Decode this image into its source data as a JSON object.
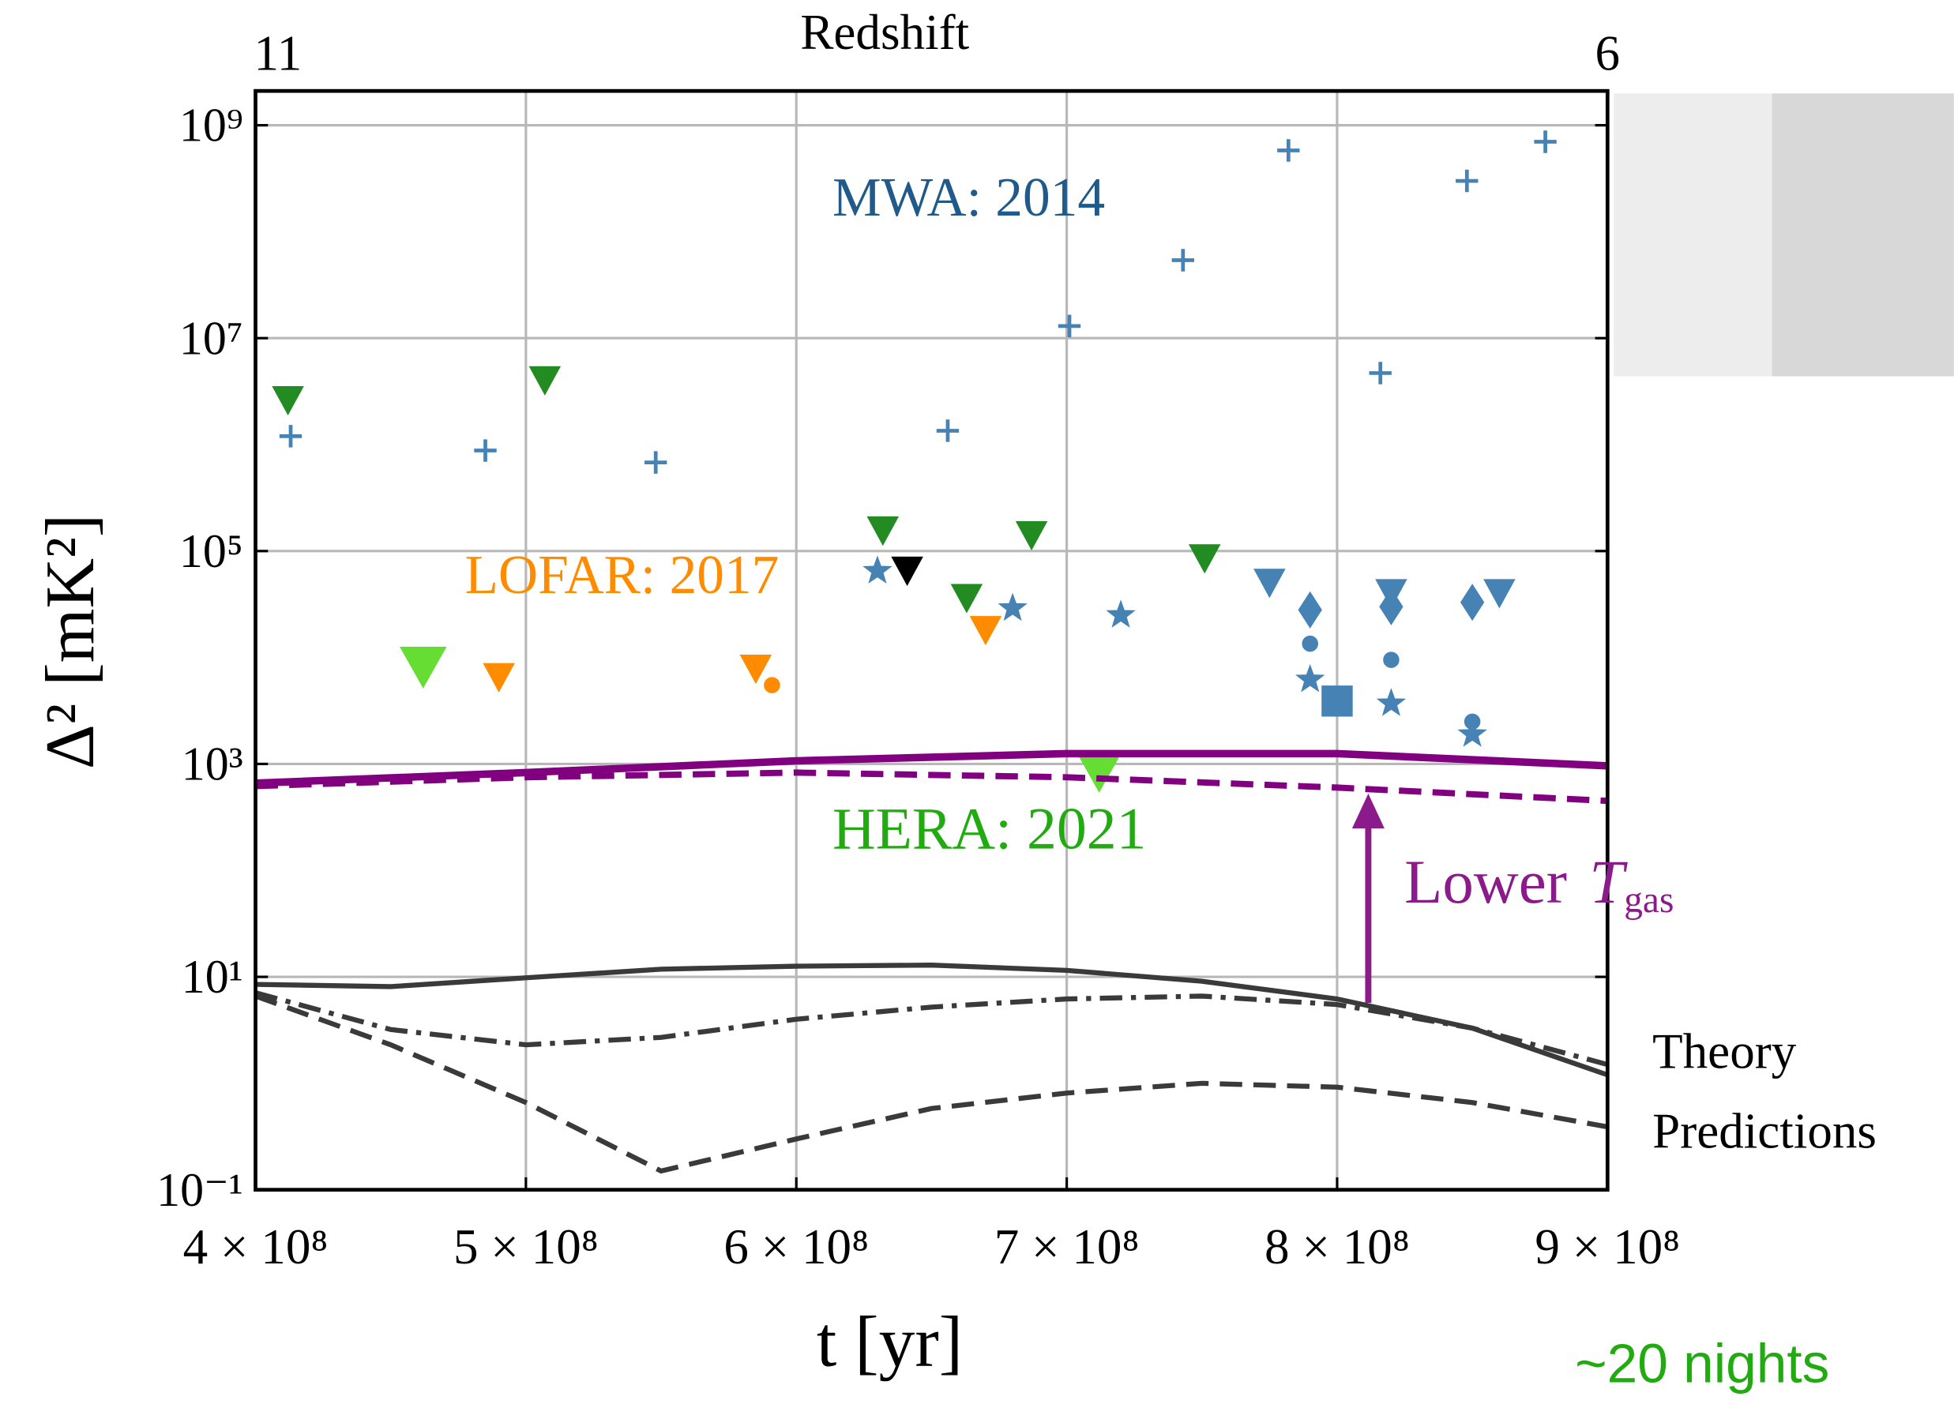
{
  "chart_data": {
    "type": "scatter",
    "x_label": "t [yr]",
    "y_label": "Δ² [mK²]",
    "top_axis_label": "Redshift",
    "xlim": [
      400000000,
      900000000
    ],
    "ylim": [
      0.1,
      2100000000
    ],
    "log_y": true,
    "grid": true,
    "xticks": [
      {
        "value": 400000000,
        "label": "4 × 10⁸"
      },
      {
        "value": 500000000,
        "label": "5 × 10⁸"
      },
      {
        "value": 600000000,
        "label": "6 × 10⁸"
      },
      {
        "value": 700000000,
        "label": "7 × 10⁸"
      },
      {
        "value": 800000000,
        "label": "8 × 10⁸"
      },
      {
        "value": 900000000,
        "label": "9 × 10⁸"
      }
    ],
    "x2ticks": [
      {
        "value": 400000000,
        "label": "11"
      },
      {
        "value": 900000000,
        "label": "6"
      }
    ],
    "yticks": [
      {
        "value": 0.1,
        "label": "10⁻¹"
      },
      {
        "value": 10,
        "label": "10¹"
      },
      {
        "value": 1000,
        "label": "10³"
      },
      {
        "value": 100000,
        "label": "10⁵"
      },
      {
        "value": 10000000,
        "label": "10⁷"
      },
      {
        "value": 1000000000,
        "label": "10⁹"
      }
    ],
    "annotations": [
      {
        "text": "MWA: 2014",
        "color": "#1f5a8a"
      },
      {
        "text": "LOFAR: 2017",
        "color": "#ff8c00"
      },
      {
        "text": "HERA: 2021",
        "color": "#22aa11"
      },
      {
        "text": "Lower",
        "symbol": "T",
        "subscript": "gas",
        "color": "#8b1a8b"
      },
      {
        "text": "Theory",
        "color": "#000000"
      },
      {
        "text": "Predictions",
        "color": "#000000"
      },
      {
        "text": "~20 nights",
        "color": "#22aa11"
      }
    ],
    "series": [
      {
        "kind": "marker",
        "marker": "plus",
        "color": "#4682b4",
        "x": [
          413000000,
          485000000,
          548000000,
          656000000,
          701000000,
          743000000,
          782000000,
          816000000,
          848000000,
          877000000
        ],
        "values": [
          1200000,
          880000,
          680000,
          1350000,
          13000000,
          54000000,
          580000000,
          4700000,
          300000000,
          700000000
        ]
      },
      {
        "kind": "marker",
        "marker": "star",
        "color": "#4682b4",
        "x": [
          630000000,
          680000000,
          720000000,
          790000000,
          820000000,
          850000000
        ],
        "values": [
          65000,
          29000,
          25000,
          6200,
          3700,
          1900
        ]
      },
      {
        "kind": "marker",
        "marker": "triangle-down",
        "color": "#4682b4",
        "x": [
          775000000,
          820000000,
          860000000
        ],
        "values": [
          50000,
          40000,
          40000
        ]
      },
      {
        "kind": "marker",
        "marker": "diamond",
        "color": "#4682b4",
        "x": [
          790000000,
          820000000,
          850000000
        ],
        "values": [
          28000,
          30000,
          33000
        ]
      },
      {
        "kind": "marker",
        "marker": "circle",
        "color": "#4682b4",
        "x": [
          790000000,
          820000000,
          850000000
        ],
        "values": [
          13500,
          9500,
          2500
        ]
      },
      {
        "kind": "marker",
        "marker": "square",
        "color": "#4682b4",
        "x": [
          800000000
        ],
        "values": [
          3900
        ]
      },
      {
        "kind": "marker",
        "marker": "triangle-down",
        "color": "#228b22",
        "x": [
          412000000,
          507000000,
          632000000,
          663000000,
          687000000,
          751000000
        ],
        "values": [
          2600000,
          4000000,
          155000,
          36000,
          140000,
          85000
        ]
      },
      {
        "kind": "marker",
        "marker": "triangle-down",
        "color": "#000000",
        "x": [
          641000000
        ],
        "values": [
          65000
        ]
      },
      {
        "kind": "marker",
        "marker": "triangle-down",
        "color": "#ff8c00",
        "x": [
          490000000,
          585000000,
          670000000
        ],
        "values": [
          6500,
          7800,
          18000
        ]
      },
      {
        "kind": "marker",
        "marker": "circle",
        "color": "#ff8c00",
        "x": [
          591000000
        ],
        "values": [
          5500
        ]
      },
      {
        "kind": "marker",
        "marker": "big-triangle-down",
        "color": "#66dd33",
        "x": [
          462000000,
          712000000
        ],
        "values": [
          8100,
          850
        ]
      },
      {
        "kind": "line",
        "style": "solid",
        "width": 6,
        "color": "#800080",
        "x": [
          400000000,
          500000000,
          600000000,
          700000000,
          800000000,
          900000000
        ],
        "values": [
          660,
          830,
          1070,
          1250,
          1250,
          960
        ]
      },
      {
        "kind": "line",
        "style": "dashed",
        "width": 5,
        "color": "#800080",
        "x": [
          400000000,
          500000000,
          600000000,
          700000000,
          800000000,
          900000000
        ],
        "values": [
          620,
          750,
          830,
          750,
          600,
          450
        ]
      },
      {
        "kind": "line",
        "style": "solid",
        "width": 4,
        "color": "#3a3a3a",
        "x": [
          400000000,
          450000000,
          500000000,
          550000000,
          600000000,
          650000000,
          700000000,
          750000000,
          800000000,
          850000000,
          900000000
        ],
        "values": [
          8.5,
          8.1,
          9.8,
          11.8,
          12.6,
          12.9,
          11.5,
          9.1,
          6.2,
          3.3,
          1.2
        ]
      },
      {
        "kind": "line",
        "style": "dashdot",
        "width": 4,
        "color": "#3a3a3a",
        "x": [
          400000000,
          450000000,
          500000000,
          550000000,
          600000000,
          650000000,
          700000000,
          750000000,
          800000000,
          850000000,
          900000000
        ],
        "values": [
          7.1,
          3.2,
          2.3,
          2.7,
          4.0,
          5.2,
          6.2,
          6.6,
          5.5,
          3.3,
          1.5
        ]
      },
      {
        "kind": "line",
        "style": "dashed",
        "width": 4,
        "color": "#3a3a3a",
        "x": [
          400000000,
          450000000,
          500000000,
          550000000,
          600000000,
          650000000,
          700000000,
          750000000,
          800000000,
          850000000,
          900000000
        ],
        "values": [
          6.6,
          2.3,
          0.66,
          0.15,
          0.3,
          0.58,
          0.81,
          1.0,
          0.92,
          0.66,
          0.39
        ]
      }
    ]
  }
}
